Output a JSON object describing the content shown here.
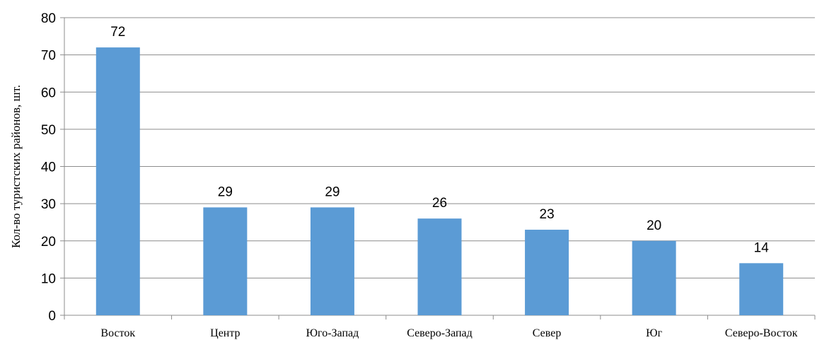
{
  "chart_data": {
    "type": "bar",
    "categories": [
      "Восток",
      "Центр",
      "Юго-Запад",
      "Северо-Запад",
      "Север",
      "Юг",
      "Северо-Восток"
    ],
    "values": [
      72,
      29,
      29,
      26,
      23,
      20,
      14
    ],
    "title": "",
    "xlabel": "",
    "ylabel": "Кол-во туристских районов, шт.",
    "ylim": [
      0,
      80
    ],
    "yticks": [
      0,
      10,
      20,
      30,
      40,
      50,
      60,
      70,
      80
    ],
    "grid": true,
    "data_labels": true,
    "bar_color": "#5b9bd5",
    "legend": "none"
  }
}
